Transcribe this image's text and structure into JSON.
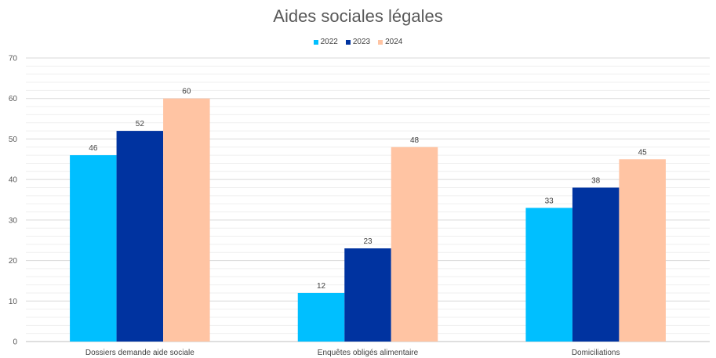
{
  "chart_data": {
    "type": "bar",
    "title": "Aides sociales légales",
    "categories": [
      "Dossiers demande aide sociale",
      "Enquêtes obligés alimentaire",
      "Domiciliations"
    ],
    "series": [
      {
        "name": "2022",
        "values": [
          46,
          12,
          33
        ],
        "color": "#00BFFF"
      },
      {
        "name": "2023",
        "values": [
          52,
          23,
          38
        ],
        "color": "#0033A0"
      },
      {
        "name": "2024",
        "values": [
          60,
          48,
          45
        ],
        "color": "#FFC4A3"
      }
    ],
    "ylim": [
      0,
      70
    ],
    "yticks": [
      0,
      10,
      20,
      30,
      40,
      50,
      60,
      70
    ],
    "grid": true,
    "legend_position": "top"
  }
}
